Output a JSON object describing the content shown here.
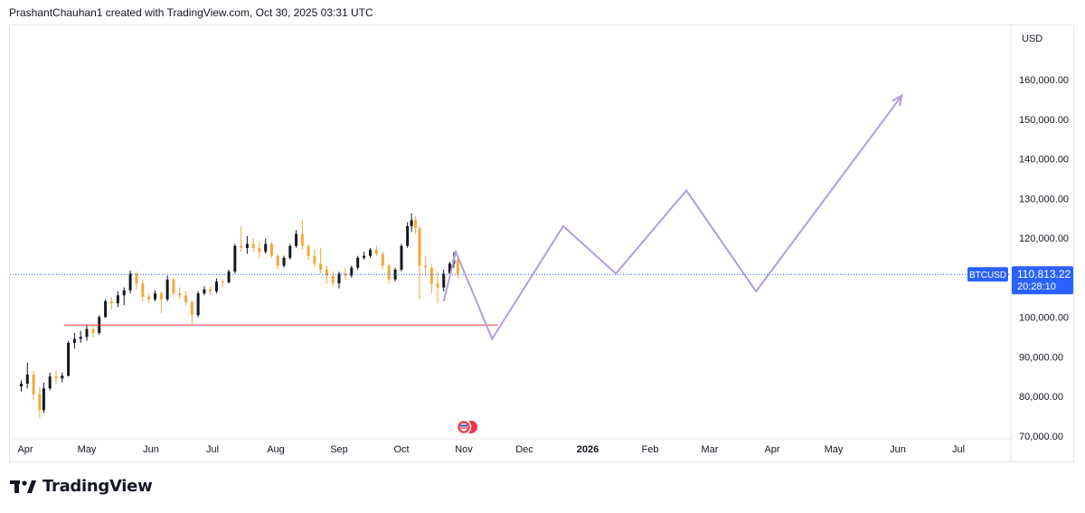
{
  "header": {
    "caption": "PrashantChauhan1 created with TradingView.com, Oct 30, 2025 03:31 UTC"
  },
  "footer": {
    "brand": "TradingView",
    "logo_icon": "tradingview-logo-icon"
  },
  "colors": {
    "bull_candle": "#131722",
    "bear_candle": "#f2a93b",
    "projection": "#b39ddb",
    "support_line": "#f23645",
    "current_price_line": "#2962ff",
    "price_badge": "#2962ff"
  },
  "chart_data": {
    "type": "candlestick",
    "symbol": "BTCUSD",
    "currency": "USD",
    "y_ticks": [
      "160,000.00",
      "150,000.00",
      "140,000.00",
      "130,000.00",
      "120,000.00",
      "100,000.00",
      "90,000.00",
      "80,000.00",
      "70,000.00"
    ],
    "y_tick_values": [
      160000,
      150000,
      140000,
      130000,
      120000,
      100000,
      90000,
      80000,
      70000
    ],
    "ylim": [
      70000,
      163000
    ],
    "x_ticks": [
      {
        "label": "Apr",
        "date": "2025-04-01"
      },
      {
        "label": "May",
        "date": "2025-05-01"
      },
      {
        "label": "Jun",
        "date": "2025-06-01"
      },
      {
        "label": "Jul",
        "date": "2025-07-01"
      },
      {
        "label": "Aug",
        "date": "2025-08-01"
      },
      {
        "label": "Sep",
        "date": "2025-09-01"
      },
      {
        "label": "Oct",
        "date": "2025-10-01"
      },
      {
        "label": "Nov",
        "date": "2025-11-01"
      },
      {
        "label": "Dec",
        "date": "2025-12-01"
      },
      {
        "label": "2026",
        "date": "2026-01-01",
        "bold": true
      },
      {
        "label": "Feb",
        "date": "2026-02-01"
      },
      {
        "label": "Mar",
        "date": "2026-03-01"
      },
      {
        "label": "Apr",
        "date": "2026-04-01"
      },
      {
        "label": "May",
        "date": "2026-05-01"
      },
      {
        "label": "Jun",
        "date": "2026-06-01"
      },
      {
        "label": "Jul",
        "date": "2026-07-01"
      }
    ],
    "current_price": {
      "value": 110813.22,
      "label": "110,813.22",
      "countdown": "20:28:10",
      "symbol_tag": "BTCUSD"
    },
    "support_line": {
      "value": 98000,
      "from": "2025-04-20",
      "to": "2025-11-18"
    },
    "candles": [
      [
        "2025-03-30",
        82500,
        84000,
        81200,
        83200
      ],
      [
        "2025-04-02",
        83200,
        88500,
        82000,
        85500
      ],
      [
        "2025-04-05",
        85500,
        86500,
        79000,
        80500
      ],
      [
        "2025-04-08",
        80500,
        82500,
        74500,
        76500
      ],
      [
        "2025-04-10",
        76500,
        83500,
        75800,
        82000
      ],
      [
        "2025-04-13",
        82000,
        86000,
        81500,
        85000
      ],
      [
        "2025-04-16",
        85000,
        86500,
        83000,
        84500
      ],
      [
        "2025-04-19",
        84500,
        86000,
        83500,
        85200
      ],
      [
        "2025-04-22",
        85200,
        94000,
        85000,
        93500
      ],
      [
        "2025-04-25",
        93500,
        96000,
        92000,
        94500
      ],
      [
        "2025-04-28",
        94500,
        96500,
        93500,
        95000
      ],
      [
        "2025-05-01",
        95000,
        98000,
        94000,
        97000
      ],
      [
        "2025-05-04",
        97000,
        98200,
        94800,
        96000
      ],
      [
        "2025-05-07",
        96000,
        100500,
        95500,
        100000
      ],
      [
        "2025-05-10",
        100000,
        104500,
        99800,
        104000
      ],
      [
        "2025-05-13",
        104000,
        105000,
        102000,
        103500
      ],
      [
        "2025-05-16",
        103500,
        106500,
        102500,
        105500
      ],
      [
        "2025-05-19",
        105500,
        107500,
        103000,
        106800
      ],
      [
        "2025-05-22",
        106800,
        111800,
        106000,
        111000
      ],
      [
        "2025-05-25",
        111000,
        111500,
        107000,
        108500
      ],
      [
        "2025-05-28",
        108500,
        109500,
        104000,
        105200
      ],
      [
        "2025-05-31",
        105200,
        106000,
        103500,
        104500
      ],
      [
        "2025-06-03",
        104500,
        106800,
        104000,
        106000
      ],
      [
        "2025-06-06",
        106000,
        106500,
        101000,
        104500
      ],
      [
        "2025-06-09",
        104500,
        110500,
        104000,
        109500
      ],
      [
        "2025-06-12",
        109500,
        110000,
        105500,
        106000
      ],
      [
        "2025-06-15",
        106000,
        107500,
        104500,
        105500
      ],
      [
        "2025-06-18",
        105500,
        106500,
        103000,
        103800
      ],
      [
        "2025-06-21",
        103800,
        104200,
        98200,
        100500
      ],
      [
        "2025-06-24",
        100500,
        106500,
        100000,
        106000
      ],
      [
        "2025-06-27",
        106000,
        107800,
        105500,
        107000
      ],
      [
        "2025-06-30",
        107000,
        108000,
        105500,
        106500
      ],
      [
        "2025-07-03",
        106500,
        109800,
        106000,
        109000
      ],
      [
        "2025-07-06",
        109000,
        109500,
        107500,
        108800
      ],
      [
        "2025-07-09",
        108800,
        112000,
        108500,
        111500
      ],
      [
        "2025-07-12",
        111500,
        118500,
        111000,
        118000
      ],
      [
        "2025-07-15",
        118000,
        123000,
        116500,
        117500
      ],
      [
        "2025-07-18",
        117500,
        120500,
        116000,
        118500
      ],
      [
        "2025-07-21",
        118500,
        120000,
        116500,
        117500
      ],
      [
        "2025-07-24",
        117500,
        119000,
        115000,
        116500
      ],
      [
        "2025-07-27",
        116500,
        119800,
        116000,
        118500
      ],
      [
        "2025-07-30",
        118500,
        119000,
        115000,
        115500
      ],
      [
        "2025-08-02",
        115500,
        116000,
        112000,
        113000
      ],
      [
        "2025-08-05",
        113000,
        115500,
        112500,
        115000
      ],
      [
        "2025-08-08",
        115000,
        118500,
        114500,
        118000
      ],
      [
        "2025-08-11",
        118000,
        122000,
        117500,
        121000
      ],
      [
        "2025-08-14",
        121000,
        124500,
        117000,
        118000
      ],
      [
        "2025-08-17",
        118000,
        118500,
        114500,
        115500
      ],
      [
        "2025-08-20",
        115500,
        117000,
        112500,
        113500
      ],
      [
        "2025-08-23",
        113500,
        117500,
        111000,
        112000
      ],
      [
        "2025-08-26",
        112000,
        113000,
        108500,
        110500
      ],
      [
        "2025-08-29",
        110500,
        111500,
        107500,
        108500
      ],
      [
        "2025-09-01",
        108500,
        111500,
        107300,
        111000
      ],
      [
        "2025-09-04",
        111000,
        112500,
        109500,
        110500
      ],
      [
        "2025-09-07",
        110500,
        113000,
        110000,
        112500
      ],
      [
        "2025-09-10",
        112500,
        115500,
        112000,
        115000
      ],
      [
        "2025-09-13",
        115000,
        116500,
        114500,
        115500
      ],
      [
        "2025-09-16",
        115500,
        117500,
        115000,
        117000
      ],
      [
        "2025-09-19",
        117000,
        118000,
        115500,
        116000
      ],
      [
        "2025-09-22",
        116000,
        116500,
        112000,
        113000
      ],
      [
        "2025-09-25",
        113000,
        113500,
        108500,
        109500
      ],
      [
        "2025-09-28",
        109500,
        112500,
        109000,
        112000
      ],
      [
        "2025-10-01",
        112000,
        118500,
        111500,
        118000
      ],
      [
        "2025-10-04",
        118000,
        124000,
        117500,
        123000
      ],
      [
        "2025-10-06",
        123000,
        126200,
        121500,
        124500
      ],
      [
        "2025-10-08",
        124500,
        125500,
        121000,
        122500
      ],
      [
        "2025-10-10",
        122500,
        123000,
        104500,
        113000
      ],
      [
        "2025-10-13",
        113000,
        115500,
        110500,
        112500
      ],
      [
        "2025-10-16",
        112500,
        113500,
        106000,
        108500
      ],
      [
        "2025-10-19",
        108500,
        111500,
        103500,
        107500
      ],
      [
        "2025-10-22",
        107500,
        112000,
        106500,
        111000
      ],
      [
        "2025-10-25",
        111000,
        114000,
        110500,
        113500
      ],
      [
        "2025-10-27",
        113500,
        116500,
        112500,
        114500
      ],
      [
        "2025-10-29",
        114500,
        115000,
        109800,
        110813
      ]
    ],
    "projection_path": [
      [
        "2025-10-22",
        104000
      ],
      [
        "2025-10-28",
        116500
      ],
      [
        "2025-11-15",
        94500
      ],
      [
        "2025-12-20",
        123000
      ],
      [
        "2026-01-15",
        111000
      ],
      [
        "2026-02-18",
        132000
      ],
      [
        "2026-03-24",
        106500
      ],
      [
        "2026-06-03",
        156000
      ]
    ]
  }
}
